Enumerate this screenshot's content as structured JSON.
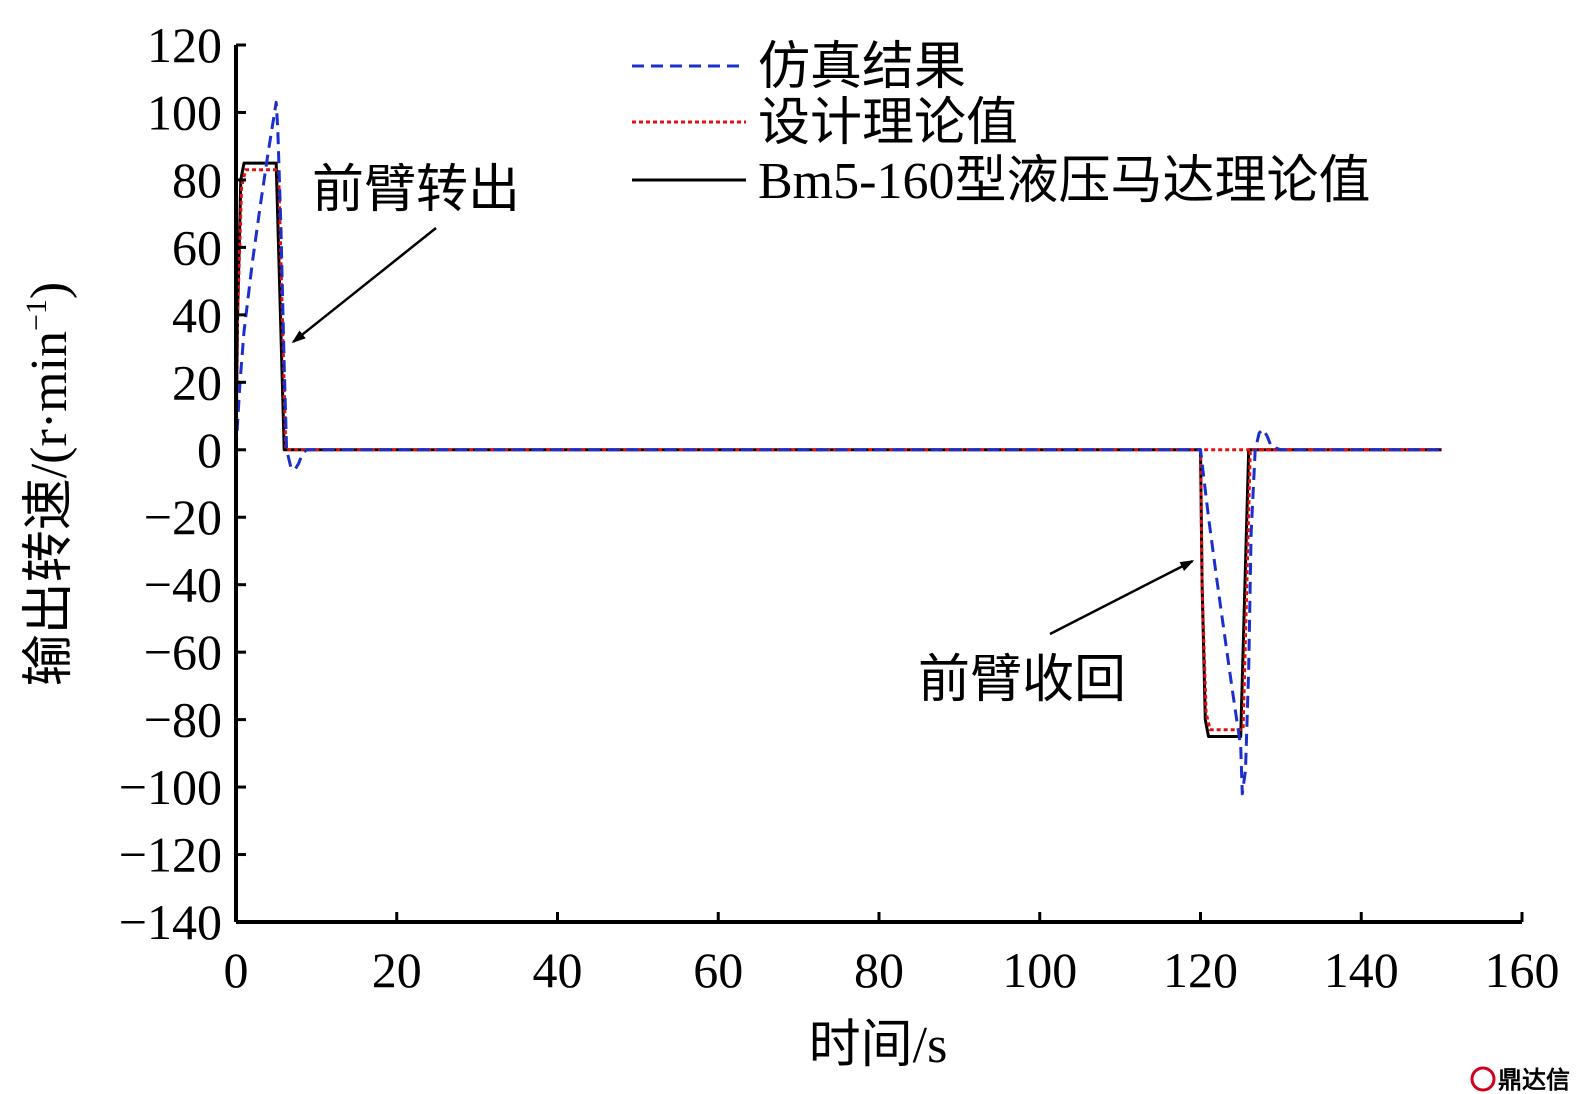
{
  "chart_data": {
    "type": "line",
    "xlabel": "时间/s",
    "ylabel": "输出转速/(r·min",
    "ylabel_sup": "−1",
    "ylabel_close": ")",
    "xlim": [
      0,
      160
    ],
    "ylim": [
      -140,
      120
    ],
    "xticks": [
      0,
      20,
      40,
      60,
      80,
      100,
      120,
      140,
      160
    ],
    "yticks": [
      120,
      100,
      80,
      60,
      40,
      20,
      0,
      -20,
      -40,
      -60,
      -80,
      -100,
      -120,
      -140
    ],
    "xtick_labels": [
      "0",
      "20",
      "40",
      "60",
      "80",
      "100",
      "120",
      "140",
      "160"
    ],
    "ytick_labels": [
      "120",
      "100",
      "80",
      "60",
      "40",
      "20",
      "0",
      "−20",
      "−40",
      "−60",
      "−80",
      "−100",
      "−120",
      "−140"
    ],
    "grid": false,
    "legend_position": "top-right",
    "series": [
      {
        "name": "仿真结果",
        "color": "#1a2fcc",
        "style": "dashed",
        "x": [
          0,
          0.5,
          1,
          2,
          3,
          4,
          5,
          5.2,
          5.6,
          6,
          6.3,
          6.8,
          7.3,
          7.8,
          8.3,
          8.8,
          10,
          120,
          121,
          122,
          123,
          124,
          125,
          125.2,
          125.6,
          126,
          126.3,
          126.8,
          127.3,
          127.8,
          128.3,
          128.8,
          130,
          150
        ],
        "y": [
          0,
          20,
          35,
          55,
          72,
          88,
          103,
          95,
          65,
          25,
          0,
          -5,
          -6,
          -4,
          -1,
          0,
          0,
          0,
          -20,
          -38,
          -55,
          -72,
          -88,
          -102,
          -95,
          -65,
          -25,
          0,
          5,
          6,
          4,
          1,
          0,
          0
        ]
      },
      {
        "name": "设计理论值",
        "color": "#e01010",
        "style": "dotted",
        "x": [
          0,
          0.2,
          0.7,
          1.2,
          5.3,
          6.2,
          150
        ],
        "y": [
          0,
          40,
          78,
          83,
          83,
          0,
          0
        ],
        "x2": [
          120,
          120.2,
          120.7,
          121.2,
          125.3,
          126.2,
          150
        ],
        "y2": [
          0,
          -40,
          -78,
          -83,
          -83,
          0,
          0
        ]
      },
      {
        "name": "Bm5-160型液压马达理论值",
        "color": "#000000",
        "style": "solid",
        "x": [
          0,
          0.2,
          0.6,
          1,
          5,
          6,
          120,
          120.2,
          120.6,
          121,
          125,
          126,
          150
        ],
        "y": [
          0,
          40,
          80,
          85,
          85,
          0,
          0,
          -40,
          -80,
          -85,
          -85,
          0,
          0
        ]
      }
    ],
    "annotations": [
      {
        "text": "前臂转出",
        "arrow_to": [
          7,
          32
        ]
      },
      {
        "text": "前臂收回",
        "arrow_to": [
          119,
          -33
        ]
      }
    ]
  },
  "watermark": {
    "text": "鼎达信"
  }
}
